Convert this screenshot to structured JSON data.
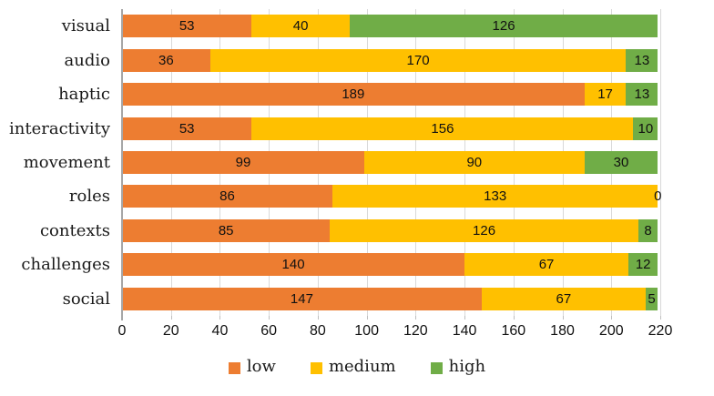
{
  "chart_data": {
    "type": "bar",
    "orientation": "horizontal",
    "stacked": true,
    "title": "",
    "xlabel": "",
    "ylabel": "",
    "categories": [
      "visual",
      "audio",
      "haptic",
      "interactivity",
      "movement",
      "roles",
      "contexts",
      "challenges",
      "social"
    ],
    "series": [
      {
        "name": "low",
        "color": "#ED7D31",
        "values": [
          53,
          36,
          189,
          53,
          99,
          86,
          85,
          140,
          147
        ]
      },
      {
        "name": "medium",
        "color": "#FFC000",
        "values": [
          40,
          170,
          17,
          156,
          90,
          133,
          126,
          67,
          67
        ]
      },
      {
        "name": "high",
        "color": "#70AD47",
        "values": [
          126,
          13,
          13,
          10,
          30,
          0,
          8,
          12,
          5
        ]
      }
    ],
    "xlim": [
      0,
      220
    ],
    "x_ticks": [
      0,
      20,
      40,
      60,
      80,
      100,
      120,
      140,
      160,
      180,
      200,
      220
    ],
    "grid": "vertical-on",
    "legend_position": "bottom",
    "data_labels": "inside-center"
  },
  "colors": {
    "low": "#ED7D31",
    "medium": "#FFC000",
    "high": "#70AD47",
    "gridline": "#d9d9d9",
    "axis_line": "#a6a6a6",
    "text": "#1a1a1a"
  }
}
